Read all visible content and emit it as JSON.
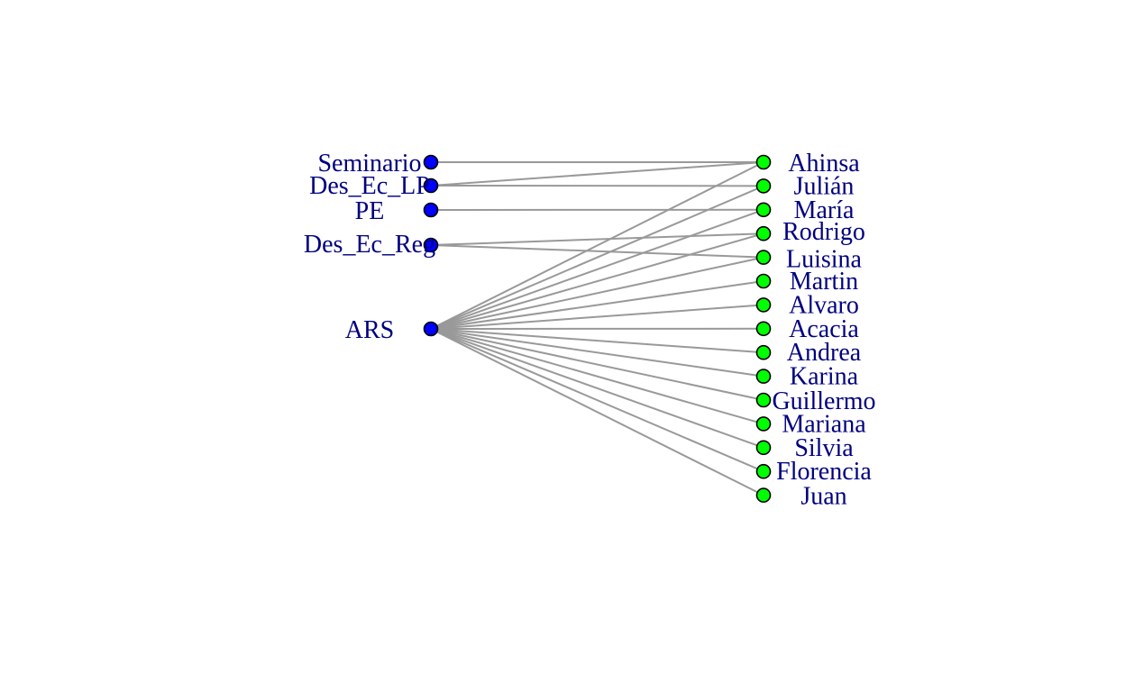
{
  "graph": {
    "left_color": "#0000ff",
    "right_color": "#00ff00",
    "label_color": "#000080",
    "edge_color": "#999999",
    "left_nodes": [
      {
        "id": "Seminario",
        "label": "Seminario"
      },
      {
        "id": "Des_Ec_LP",
        "label": "Des_Ec_LP"
      },
      {
        "id": "PE",
        "label": "PE"
      },
      {
        "id": "Des_Ec_Reg",
        "label": "Des_Ec_Reg"
      },
      {
        "id": "ARS",
        "label": "ARS"
      }
    ],
    "right_nodes": [
      {
        "id": "Ahinsa",
        "label": "Ahinsa"
      },
      {
        "id": "Julian",
        "label": "Julián"
      },
      {
        "id": "Maria",
        "label": "María"
      },
      {
        "id": "Rodrigo",
        "label": "Rodrigo"
      },
      {
        "id": "Luisina",
        "label": "Luisina"
      },
      {
        "id": "Martin",
        "label": "Martin"
      },
      {
        "id": "Alvaro",
        "label": "Alvaro"
      },
      {
        "id": "Acacia",
        "label": "Acacia"
      },
      {
        "id": "Andrea",
        "label": "Andrea"
      },
      {
        "id": "Karina",
        "label": "Karina"
      },
      {
        "id": "Guillermo",
        "label": "Guillermo"
      },
      {
        "id": "Mariana",
        "label": "Mariana"
      },
      {
        "id": "Silvia",
        "label": "Silvia"
      },
      {
        "id": "Florencia",
        "label": "Florencia"
      },
      {
        "id": "Juan",
        "label": "Juan"
      }
    ],
    "edges": [
      [
        "Seminario",
        "Ahinsa"
      ],
      [
        "Des_Ec_LP",
        "Ahinsa"
      ],
      [
        "Des_Ec_LP",
        "Julian"
      ],
      [
        "PE",
        "Maria"
      ],
      [
        "Des_Ec_Reg",
        "Rodrigo"
      ],
      [
        "Des_Ec_Reg",
        "Luisina"
      ],
      [
        "ARS",
        "Ahinsa"
      ],
      [
        "ARS",
        "Julian"
      ],
      [
        "ARS",
        "Maria"
      ],
      [
        "ARS",
        "Rodrigo"
      ],
      [
        "ARS",
        "Luisina"
      ],
      [
        "ARS",
        "Martin"
      ],
      [
        "ARS",
        "Alvaro"
      ],
      [
        "ARS",
        "Acacia"
      ],
      [
        "ARS",
        "Andrea"
      ],
      [
        "ARS",
        "Karina"
      ],
      [
        "ARS",
        "Guillermo"
      ],
      [
        "ARS",
        "Mariana"
      ],
      [
        "ARS",
        "Silvia"
      ],
      [
        "ARS",
        "Florencia"
      ],
      [
        "ARS",
        "Juan"
      ]
    ]
  }
}
